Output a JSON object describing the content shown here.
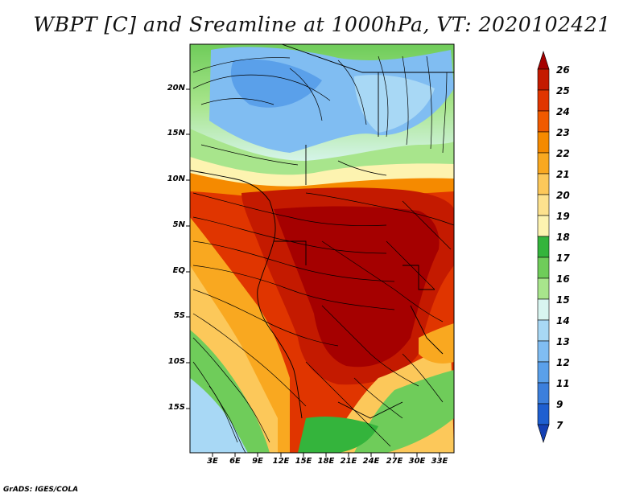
{
  "title": "WBPT [C] and Sreamline at 1000hPa, VT: 2020102421",
  "footer": "GrADS: IGES/COLA",
  "lat_labels": [
    "20N",
    "15N",
    "10N",
    "5N",
    "EQ",
    "5S",
    "10S",
    "15S"
  ],
  "lon_labels": [
    "3E",
    "6E",
    "9E",
    "12E",
    "15E",
    "18E",
    "21E",
    "24E",
    "27E",
    "30E",
    "33E"
  ],
  "colorbar": {
    "labels": [
      "26",
      "25",
      "24",
      "23",
      "22",
      "21",
      "20",
      "19",
      "18",
      "17",
      "16",
      "15",
      "14",
      "13",
      "12",
      "11",
      "9",
      "7"
    ],
    "colors": [
      "#a50000",
      "#c41a00",
      "#e03500",
      "#f05a00",
      "#f58a00",
      "#f9a820",
      "#fcc85a",
      "#fde28e",
      "#fdf3b0",
      "#34b43c",
      "#6fcc5a",
      "#a8e58c",
      "#d8f5f0",
      "#a8d8f5",
      "#80bdf2",
      "#5aa0ea",
      "#3c7fdc",
      "#1e5fd0",
      "#1440b4"
    ]
  }
}
